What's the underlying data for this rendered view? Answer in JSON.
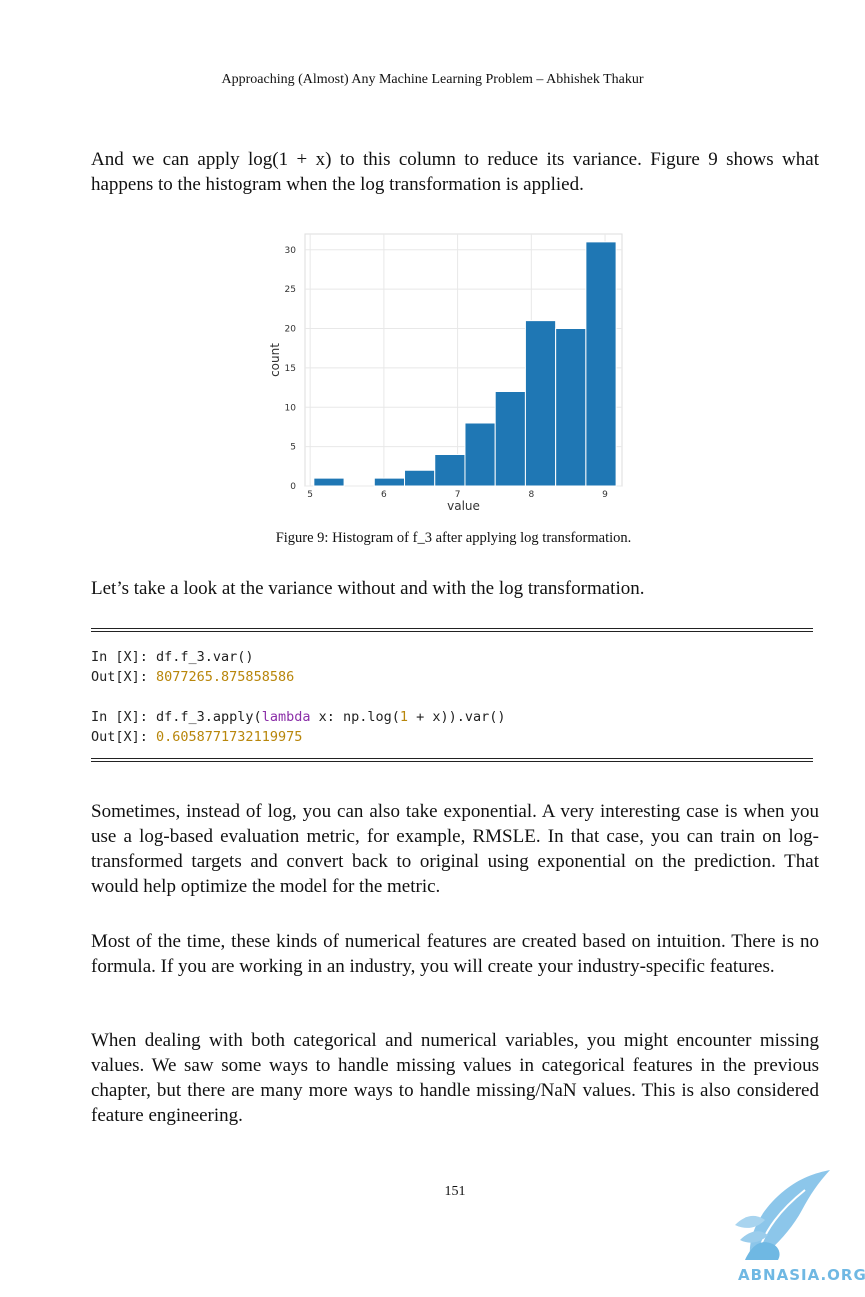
{
  "header": "Approaching (Almost) Any Machine Learning Problem – Abhishek Thakur",
  "paragraphs": {
    "p1": "And we can apply log(1 + x) to this column to reduce its variance. Figure 9 shows what happens to the histogram when the log transformation is applied.",
    "p2": "Let’s take a look at the variance without and with the log transformation.",
    "p3": "Sometimes, instead of log, you can also take exponential. A very interesting case is when you use a log-based evaluation metric, for example, RMSLE. In that case, you can train on log-transformed targets and convert back to original using exponential on the prediction. That would help optimize the model for the metric.",
    "p4": "Most of the time, these kinds of numerical features are created based on intuition. There is no formula. If you are working in an industry, you will create your industry-specific features.",
    "p5": "When dealing with both categorical and numerical variables, you might encounter missing values. We saw some ways to handle missing values in categorical features in the previous chapter, but there are many more ways to handle missing/NaN values. This is also considered feature engineering."
  },
  "figure_caption": "Figure 9: Histogram of f_3 after applying log transformation.",
  "code": {
    "line1": "In [X]: df.f_3.var()",
    "line2_prefix": "Out[X]: ",
    "line2_value": "8077265.875858586",
    "line3_a": "In [X]: df.f_3.apply(",
    "line3_kw": "lambda",
    "line3_b": " x: np.log(",
    "line3_num": "1",
    "line3_c": " + x)).var()",
    "line4_prefix": "Out[X]: ",
    "line4_value": "0.6058771732119975"
  },
  "page_number": "151",
  "watermark": "ABNASIA.ORG",
  "colors": {
    "bar": "#1f77b4",
    "code_number": "#b8860b",
    "code_keyword": "#8b2fa8",
    "watermark": "#6fb8e3"
  },
  "chart_data": {
    "type": "bar",
    "xlabel": "value",
    "ylabel": "count",
    "xlim": [
      4.93,
      9.23
    ],
    "ylim": [
      0,
      32
    ],
    "xticks": [
      5,
      6,
      7,
      8,
      9
    ],
    "yticks": [
      0,
      5,
      10,
      15,
      20,
      25,
      30
    ],
    "grid": true,
    "bins": [
      {
        "x0": 5.05,
        "x1": 5.46,
        "count": 1
      },
      {
        "x0": 5.46,
        "x1": 5.87,
        "count": 0
      },
      {
        "x0": 5.87,
        "x1": 6.28,
        "count": 1
      },
      {
        "x0": 6.28,
        "x1": 6.69,
        "count": 2
      },
      {
        "x0": 6.69,
        "x1": 7.1,
        "count": 4
      },
      {
        "x0": 7.1,
        "x1": 7.51,
        "count": 8
      },
      {
        "x0": 7.51,
        "x1": 7.92,
        "count": 12
      },
      {
        "x0": 7.92,
        "x1": 8.33,
        "count": 21
      },
      {
        "x0": 8.33,
        "x1": 8.74,
        "count": 20
      },
      {
        "x0": 8.74,
        "x1": 9.15,
        "count": 31
      }
    ]
  }
}
